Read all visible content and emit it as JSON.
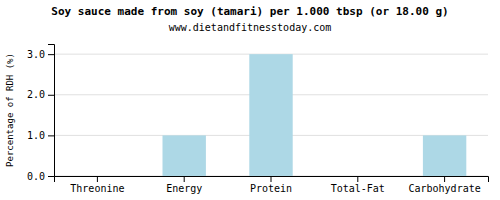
{
  "chart_data": {
    "type": "bar",
    "title": "Soy sauce made from soy (tamari) per 1.000 tbsp (or 18.00 g)",
    "subtitle": "www.dietandfitnesstoday.com",
    "ylabel": "Percentage of RDH (%)",
    "categories": [
      "Threonine",
      "Energy",
      "Protein",
      "Total-Fat",
      "Carbohydrate"
    ],
    "values": [
      0.0,
      1.0,
      3.0,
      0.0,
      1.0
    ],
    "color": "#add8e6",
    "ylim": [
      0,
      3.25
    ],
    "yticks": [
      {
        "value": 0.0,
        "label": "0.0"
      },
      {
        "value": 1.0,
        "label": "1.0"
      },
      {
        "value": 2.0,
        "label": "2.0"
      },
      {
        "value": 3.0,
        "label": "3.0"
      }
    ],
    "grid": true
  }
}
